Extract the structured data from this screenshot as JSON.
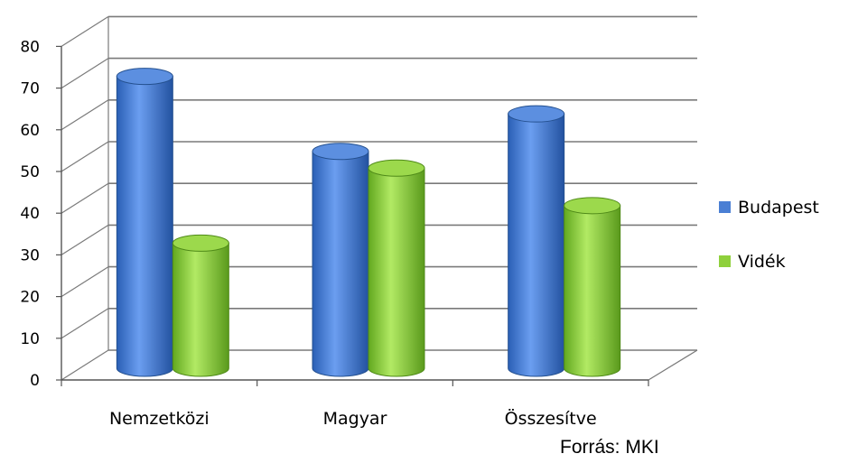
{
  "chart_data": {
    "type": "bar",
    "style": "3d-cylinder",
    "categories": [
      "Nemzetközi",
      "Magyar",
      "Összesítve"
    ],
    "series": [
      {
        "name": "Budapest",
        "values": [
          70,
          52,
          61
        ],
        "color": "#4a7fd4"
      },
      {
        "name": "Vidék",
        "values": [
          30,
          48,
          39
        ],
        "color": "#8fd03c"
      }
    ],
    "ylim": [
      0,
      80
    ],
    "yticks": [
      0,
      10,
      20,
      30,
      40,
      50,
      60,
      70,
      80
    ],
    "grid": true,
    "legend": "right"
  },
  "source_text": "Forrás: MKI"
}
